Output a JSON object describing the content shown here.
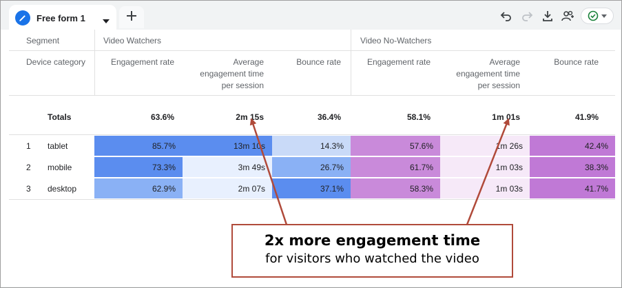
{
  "tab": {
    "label": "Free form 1",
    "icon": "pencil-icon"
  },
  "toolbar": {
    "add_tab_icon": "plus-icon",
    "undo_icon": "undo-icon",
    "redo_icon": "redo-icon",
    "download_icon": "download-icon",
    "share_icon": "share-users-icon",
    "status_icon": "check-circle-icon"
  },
  "table": {
    "segment_label": "Segment",
    "dimension_label": "Device category",
    "segments": [
      "Video Watchers",
      "Video No-Watchers"
    ],
    "metrics": [
      "Engagement rate",
      "Average engagement time per session",
      "Bounce rate"
    ],
    "metric_lines": {
      "avg": [
        "Average",
        "engagement time",
        "per session"
      ]
    },
    "totals_label": "Totals",
    "totals": [
      "63.6%",
      "2m 15s",
      "36.4%",
      "58.1%",
      "1m 01s",
      "41.9%"
    ],
    "rows": [
      {
        "index": "1",
        "label": "tablet",
        "values": [
          "85.7%",
          "13m 10s",
          "14.3%",
          "57.6%",
          "1m 26s",
          "42.4%"
        ]
      },
      {
        "index": "2",
        "label": "mobile",
        "values": [
          "73.3%",
          "3m 49s",
          "26.7%",
          "61.7%",
          "1m 03s",
          "38.3%"
        ]
      },
      {
        "index": "3",
        "label": "desktop",
        "values": [
          "62.9%",
          "2m 07s",
          "37.1%",
          "58.3%",
          "1m 03s",
          "41.7%"
        ]
      }
    ],
    "heat_colors": {
      "blue_dark": "#5b8def",
      "blue_mid": "#8ab1f5",
      "blue_light": "#c9daf8",
      "blue_pale": "#e8f0fe",
      "purple_dark": "#c079d6",
      "purple_mid": "#c98ada",
      "purple_pale": "#f6e9f8"
    }
  },
  "callout": {
    "line1": "2x more engagement time",
    "line2": "for visitors who watched the video",
    "border_color": "#b04a3a"
  }
}
